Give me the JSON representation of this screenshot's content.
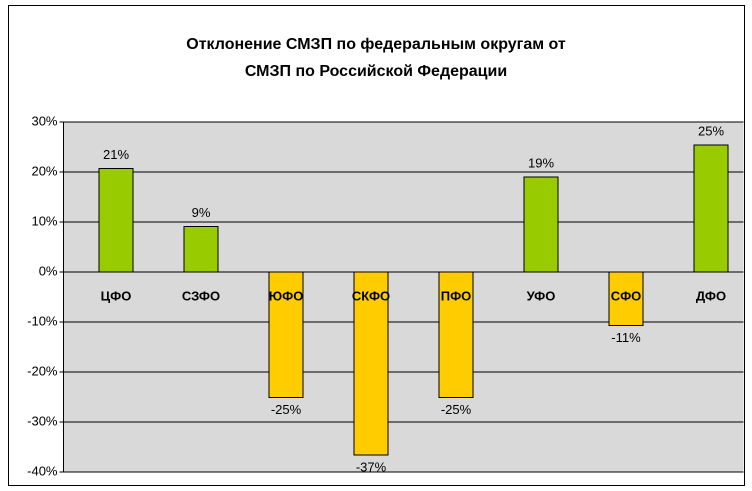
{
  "chart_data": {
    "type": "bar",
    "title": "Отклонение СМЗП по федеральным округам от",
    "subtitle": "СМЗП по Российской Федерации",
    "categories": [
      "ЦФО",
      "СЗФО",
      "ЮФО",
      "СКФО",
      "ПФО",
      "УФО",
      "СФО",
      "ДФО"
    ],
    "values": [
      20.7,
      9.1,
      -25.1,
      -36.6,
      -25.1,
      19,
      -10.7,
      25.4
    ],
    "value_labels": [
      "21%",
      "9%",
      "-25%",
      "-37%",
      "-25%",
      "19%",
      "-11%",
      "25%"
    ],
    "colors": [
      "#99cc00",
      "#99cc00",
      "#ffcc00",
      "#ffcc00",
      "#ffcc00",
      "#99cc00",
      "#ffcc00",
      "#99cc00"
    ],
    "ylim": [
      -40,
      30
    ],
    "yticks": [
      {
        "value": -40,
        "label": "-40%"
      },
      {
        "value": -30,
        "label": "-30%"
      },
      {
        "value": -20,
        "label": "-20%"
      },
      {
        "value": -10,
        "label": "-10%"
      },
      {
        "value": 0,
        "label": "0%"
      },
      {
        "value": 10,
        "label": "10%"
      },
      {
        "value": 20,
        "label": "20%"
      },
      {
        "value": 30,
        "label": "30%"
      }
    ],
    "grid": true
  }
}
